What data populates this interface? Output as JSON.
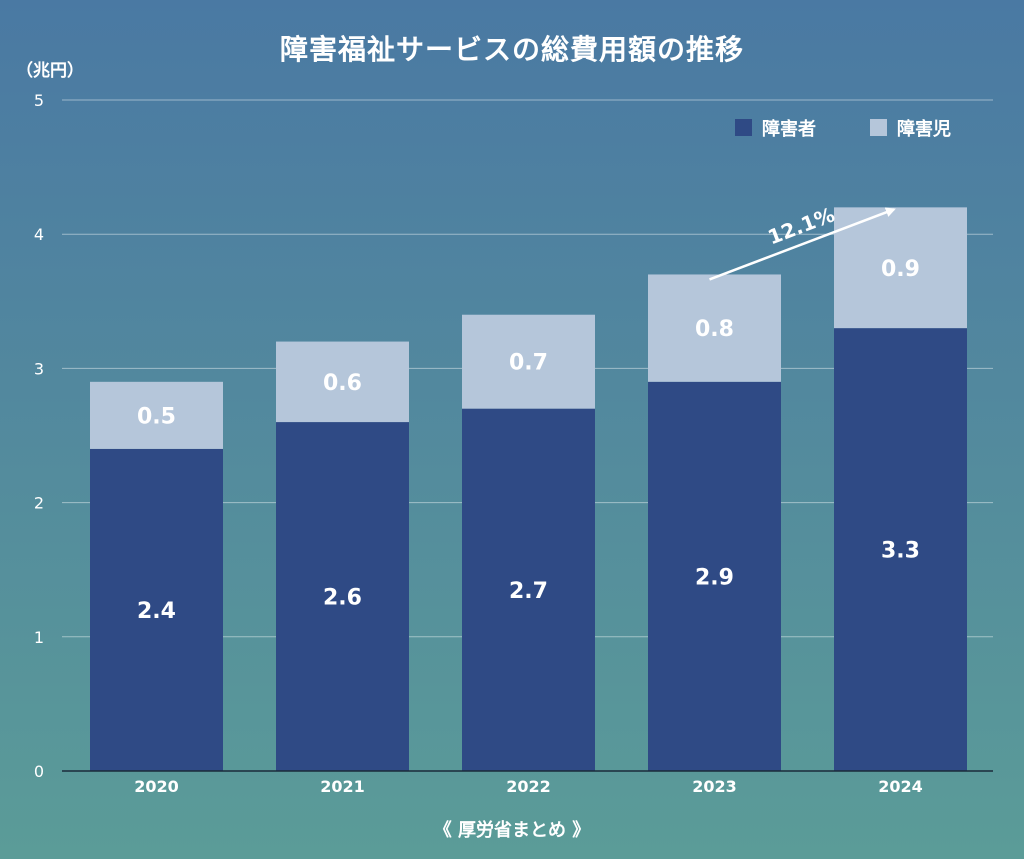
{
  "chart_data": {
    "type": "bar",
    "stacked": true,
    "title": "障害福祉サービスの総費用額の推移",
    "ylabel": "（兆円）",
    "xlabel": "",
    "categories": [
      "2020",
      "2021",
      "2022",
      "2023",
      "2024"
    ],
    "series": [
      {
        "name": "障害者",
        "values": [
          2.4,
          2.6,
          2.7,
          2.9,
          3.3
        ],
        "color": "#2f4a85"
      },
      {
        "name": "障害児",
        "values": [
          0.5,
          0.6,
          0.7,
          0.8,
          0.9
        ],
        "color": "#b5c6da"
      }
    ],
    "value_labels": {
      "障害者": [
        "2.4",
        "2.6",
        "2.7",
        "2.9",
        "3.3"
      ],
      "障害児": [
        "0.5",
        "0.6",
        "0.7",
        "0.8",
        "0.9"
      ]
    },
    "ylim": [
      0,
      5
    ],
    "yticks": [
      0,
      1,
      2,
      3,
      4,
      5
    ],
    "grid": true,
    "legend": "top-right",
    "annotation": {
      "text": "12.1%",
      "from_category": "2023",
      "to_category": "2024"
    },
    "source": "《 厚労省まとめ 》"
  },
  "colors": {
    "grid": "#ffffff",
    "axis": "#1a2a3a"
  }
}
